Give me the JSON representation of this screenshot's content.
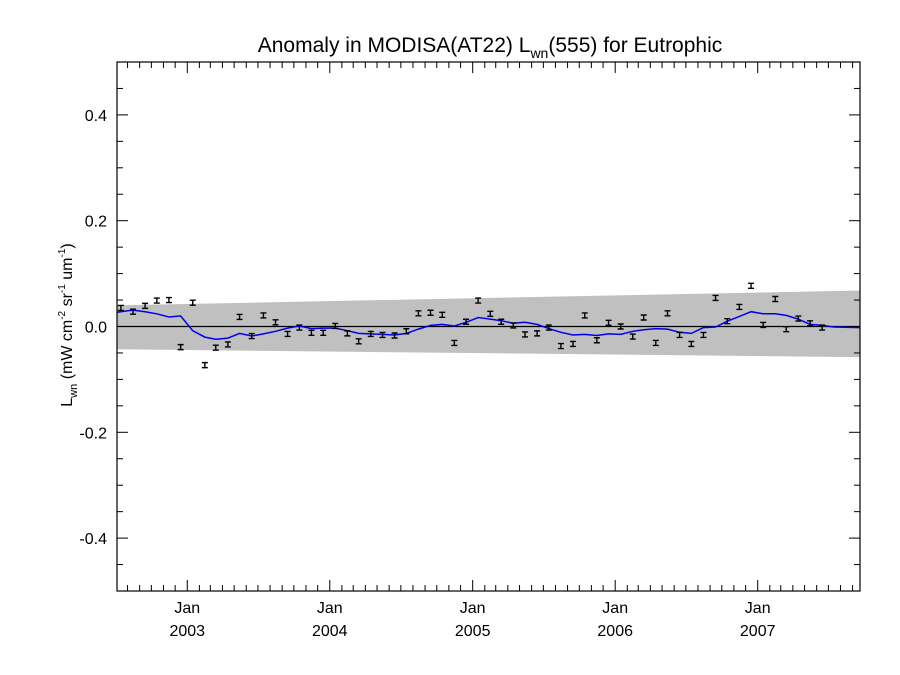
{
  "chart_data": {
    "type": "line",
    "title": {
      "main": "Anomaly in MODISA(AT22) L",
      "sub": "wn",
      "tail": "(555) for Eutrophic"
    },
    "ylabel": {
      "main": "L",
      "sub": "wn",
      "units_a": " (mW cm",
      "sup1": "-2",
      "units_b": " sr",
      "sup2": "-1",
      "units_c": " um",
      "sup3": "-1",
      "units_d": ")"
    },
    "xlabel": "",
    "xlim": [
      "2002-07-05",
      "2007-09-20"
    ],
    "ylim": [
      -0.5,
      0.5
    ],
    "y_ticks": [
      {
        "value": 0.4,
        "label": "0.4"
      },
      {
        "value": 0.2,
        "label": "0.2"
      },
      {
        "value": 0.0,
        "label": "0.0"
      },
      {
        "value": -0.2,
        "label": "-0.2"
      },
      {
        "value": -0.4,
        "label": "-0.4"
      }
    ],
    "x_ticks": [
      {
        "date": "2003-01-01",
        "month": "Jan",
        "year": "2003"
      },
      {
        "date": "2004-01-01",
        "month": "Jan",
        "year": "2004"
      },
      {
        "date": "2005-01-01",
        "month": "Jan",
        "year": "2005"
      },
      {
        "date": "2006-01-01",
        "month": "Jan",
        "year": "2006"
      },
      {
        "date": "2007-01-01",
        "month": "Jan",
        "year": "2007"
      }
    ],
    "zero_line": 0.0,
    "uncertainty_band": {
      "start": {
        "date": "2002-07-05",
        "lower": -0.043,
        "upper": 0.04
      },
      "end": {
        "date": "2007-09-20",
        "lower": -0.058,
        "upper": 0.068
      },
      "color": "#c0c0c0"
    },
    "series": [
      {
        "kind": "monthly_anomaly",
        "marker": "errorbar",
        "color": "#000000",
        "points": [
          {
            "date": "2002-07-15",
            "y": 0.035
          },
          {
            "date": "2002-08-15",
            "y": 0.028
          },
          {
            "date": "2002-09-15",
            "y": 0.039
          },
          {
            "date": "2002-10-15",
            "y": 0.049
          },
          {
            "date": "2002-11-15",
            "y": 0.05
          },
          {
            "date": "2002-12-15",
            "y": -0.039
          },
          {
            "date": "2003-01-15",
            "y": 0.045
          },
          {
            "date": "2003-02-15",
            "y": -0.073
          },
          {
            "date": "2003-03-15",
            "y": -0.04
          },
          {
            "date": "2003-04-15",
            "y": -0.034
          },
          {
            "date": "2003-05-15",
            "y": 0.018
          },
          {
            "date": "2003-06-15",
            "y": -0.018
          },
          {
            "date": "2003-07-15",
            "y": 0.021
          },
          {
            "date": "2003-08-15",
            "y": 0.008
          },
          {
            "date": "2003-09-15",
            "y": -0.014
          },
          {
            "date": "2003-10-15",
            "y": -0.002
          },
          {
            "date": "2003-11-15",
            "y": -0.012
          },
          {
            "date": "2003-12-15",
            "y": -0.012
          },
          {
            "date": "2004-01-15",
            "y": 0.001
          },
          {
            "date": "2004-02-15",
            "y": -0.013
          },
          {
            "date": "2004-03-15",
            "y": -0.028
          },
          {
            "date": "2004-04-15",
            "y": -0.014
          },
          {
            "date": "2004-05-15",
            "y": -0.016
          },
          {
            "date": "2004-06-15",
            "y": -0.017
          },
          {
            "date": "2004-07-15",
            "y": -0.009
          },
          {
            "date": "2004-08-15",
            "y": 0.025
          },
          {
            "date": "2004-09-15",
            "y": 0.026
          },
          {
            "date": "2004-10-15",
            "y": 0.022
          },
          {
            "date": "2004-11-15",
            "y": -0.031
          },
          {
            "date": "2004-12-15",
            "y": 0.009
          },
          {
            "date": "2005-01-15",
            "y": 0.049
          },
          {
            "date": "2005-02-15",
            "y": 0.024
          },
          {
            "date": "2005-03-15",
            "y": 0.009
          },
          {
            "date": "2005-04-15",
            "y": 0.002
          },
          {
            "date": "2005-05-15",
            "y": -0.015
          },
          {
            "date": "2005-06-15",
            "y": -0.013
          },
          {
            "date": "2005-07-15",
            "y": -0.002
          },
          {
            "date": "2005-08-15",
            "y": -0.037
          },
          {
            "date": "2005-09-15",
            "y": -0.033
          },
          {
            "date": "2005-10-15",
            "y": 0.021
          },
          {
            "date": "2005-11-15",
            "y": -0.026
          },
          {
            "date": "2005-12-15",
            "y": 0.007
          },
          {
            "date": "2006-01-15",
            "y": 0.0
          },
          {
            "date": "2006-02-15",
            "y": -0.019
          },
          {
            "date": "2006-03-15",
            "y": 0.017
          },
          {
            "date": "2006-04-15",
            "y": -0.031
          },
          {
            "date": "2006-05-15",
            "y": 0.025
          },
          {
            "date": "2006-06-15",
            "y": -0.016
          },
          {
            "date": "2006-07-15",
            "y": -0.033
          },
          {
            "date": "2006-08-15",
            "y": -0.016
          },
          {
            "date": "2006-09-15",
            "y": 0.054
          },
          {
            "date": "2006-10-15",
            "y": 0.01
          },
          {
            "date": "2006-11-15",
            "y": 0.037
          },
          {
            "date": "2006-12-15",
            "y": 0.077
          },
          {
            "date": "2007-01-15",
            "y": 0.003
          },
          {
            "date": "2007-02-15",
            "y": 0.052
          },
          {
            "date": "2007-03-15",
            "y": -0.005
          },
          {
            "date": "2007-04-15",
            "y": 0.015
          },
          {
            "date": "2007-05-15",
            "y": 0.006
          },
          {
            "date": "2007-06-15",
            "y": -0.002
          }
        ]
      },
      {
        "kind": "smoothed",
        "marker": "line",
        "color": "#0000ee",
        "points": [
          {
            "date": "2002-07-05",
            "y": 0.027
          },
          {
            "date": "2002-08-15",
            "y": 0.031
          },
          {
            "date": "2002-09-15",
            "y": 0.028
          },
          {
            "date": "2002-10-15",
            "y": 0.024
          },
          {
            "date": "2002-11-15",
            "y": 0.018
          },
          {
            "date": "2002-12-15",
            "y": 0.02
          },
          {
            "date": "2003-01-15",
            "y": -0.008
          },
          {
            "date": "2003-02-15",
            "y": -0.02
          },
          {
            "date": "2003-03-15",
            "y": -0.024
          },
          {
            "date": "2003-04-15",
            "y": -0.022
          },
          {
            "date": "2003-05-15",
            "y": -0.013
          },
          {
            "date": "2003-06-15",
            "y": -0.018
          },
          {
            "date": "2003-07-15",
            "y": -0.014
          },
          {
            "date": "2003-08-15",
            "y": -0.009
          },
          {
            "date": "2003-09-15",
            "y": -0.003
          },
          {
            "date": "2003-10-15",
            "y": 0.001
          },
          {
            "date": "2003-11-15",
            "y": -0.004
          },
          {
            "date": "2003-12-15",
            "y": -0.003
          },
          {
            "date": "2004-01-15",
            "y": -0.003
          },
          {
            "date": "2004-02-15",
            "y": -0.008
          },
          {
            "date": "2004-03-15",
            "y": -0.013
          },
          {
            "date": "2004-04-15",
            "y": -0.014
          },
          {
            "date": "2004-05-15",
            "y": -0.015
          },
          {
            "date": "2004-06-15",
            "y": -0.016
          },
          {
            "date": "2004-07-15",
            "y": -0.013
          },
          {
            "date": "2004-08-15",
            "y": -0.005
          },
          {
            "date": "2004-09-15",
            "y": 0.002
          },
          {
            "date": "2004-10-15",
            "y": 0.004
          },
          {
            "date": "2004-11-15",
            "y": 0.001
          },
          {
            "date": "2004-12-15",
            "y": 0.008
          },
          {
            "date": "2005-01-15",
            "y": 0.017
          },
          {
            "date": "2005-02-15",
            "y": 0.014
          },
          {
            "date": "2005-03-15",
            "y": 0.011
          },
          {
            "date": "2005-04-15",
            "y": 0.006
          },
          {
            "date": "2005-05-15",
            "y": 0.008
          },
          {
            "date": "2005-06-15",
            "y": 0.004
          },
          {
            "date": "2005-07-15",
            "y": -0.004
          },
          {
            "date": "2005-08-15",
            "y": -0.011
          },
          {
            "date": "2005-09-15",
            "y": -0.016
          },
          {
            "date": "2005-10-15",
            "y": -0.015
          },
          {
            "date": "2005-11-15",
            "y": -0.017
          },
          {
            "date": "2005-12-15",
            "y": -0.014
          },
          {
            "date": "2006-01-15",
            "y": -0.015
          },
          {
            "date": "2006-02-15",
            "y": -0.009
          },
          {
            "date": "2006-03-15",
            "y": -0.006
          },
          {
            "date": "2006-04-15",
            "y": -0.004
          },
          {
            "date": "2006-05-15",
            "y": -0.005
          },
          {
            "date": "2006-06-15",
            "y": -0.011
          },
          {
            "date": "2006-07-15",
            "y": -0.013
          },
          {
            "date": "2006-08-15",
            "y": -0.002
          },
          {
            "date": "2006-09-15",
            "y": -0.001
          },
          {
            "date": "2006-10-15",
            "y": 0.01
          },
          {
            "date": "2006-11-15",
            "y": 0.019
          },
          {
            "date": "2006-12-15",
            "y": 0.028
          },
          {
            "date": "2007-01-15",
            "y": 0.024
          },
          {
            "date": "2007-02-15",
            "y": 0.024
          },
          {
            "date": "2007-03-15",
            "y": 0.021
          },
          {
            "date": "2007-04-15",
            "y": 0.014
          },
          {
            "date": "2007-05-15",
            "y": 0.004
          },
          {
            "date": "2007-06-15",
            "y": 0.002
          },
          {
            "date": "2007-07-15",
            "y": -0.001
          },
          {
            "date": "2007-09-20",
            "y": -0.002
          }
        ]
      }
    ],
    "grid": false,
    "legend": "none"
  }
}
